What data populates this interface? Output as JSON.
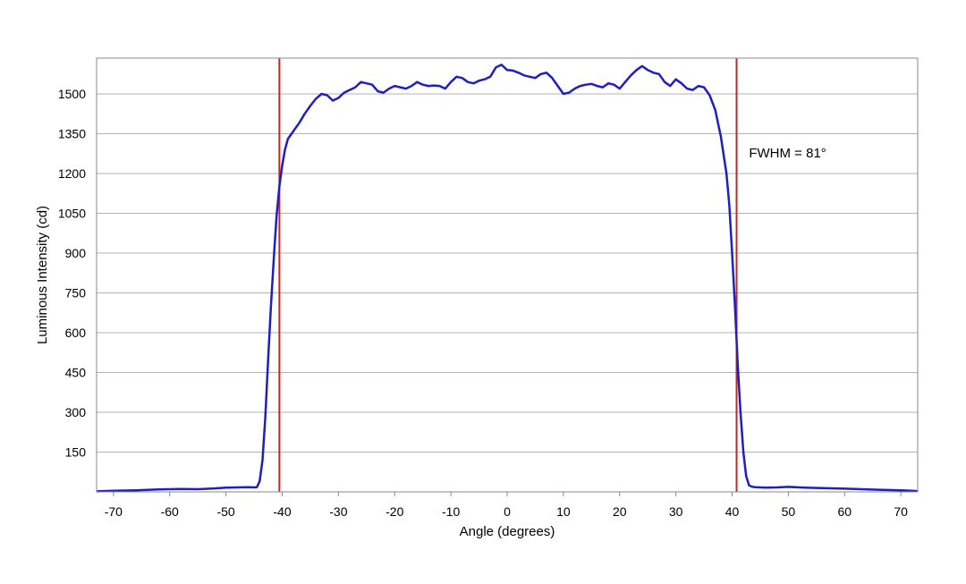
{
  "chart_data": {
    "type": "line",
    "title": "",
    "xlabel": "Angle (degrees)",
    "ylabel": "Luminous Intensity (cd)",
    "xlim": [
      -73,
      73
    ],
    "ylim": [
      0,
      1635
    ],
    "x_ticks": [
      -70,
      -60,
      -50,
      -40,
      -30,
      -20,
      -10,
      0,
      10,
      20,
      30,
      40,
      50,
      60,
      70
    ],
    "y_ticks": [
      150,
      300,
      450,
      600,
      750,
      900,
      1050,
      1200,
      1350,
      1500
    ],
    "x_tick_labels": [
      "-70",
      "-60",
      "-50",
      "-40",
      "-30",
      "-20",
      "-10",
      "0",
      "10",
      "20",
      "30",
      "40",
      "50",
      "60",
      "70"
    ],
    "y_tick_labels": [
      "150",
      "300",
      "450",
      "600",
      "750",
      "900",
      "1050",
      "1200",
      "1350",
      "1500"
    ],
    "grid": {
      "horizontal": true,
      "vertical": false
    },
    "legend": "none",
    "colors": {
      "series": "#1f1fbf",
      "fwhm_lines": "#d62020",
      "grid": "#b3b3b3",
      "frame": "#888888"
    },
    "series": [
      {
        "x": [
          -73,
          -70,
          -66,
          -62,
          -58,
          -55,
          -52,
          -50,
          -48,
          -46,
          -45,
          -44.5,
          -44,
          -43.5,
          -43,
          -42.5,
          -42,
          -41.5,
          -41,
          -40.5,
          -40,
          -39.5,
          -39,
          -38.5,
          -38,
          -37.5,
          -37,
          -36,
          -35,
          -34,
          -33,
          -32,
          -31,
          -30,
          -29,
          -28,
          -27,
          -26,
          -25,
          -24,
          -23,
          -22,
          -21,
          -20,
          -19,
          -18,
          -17,
          -16,
          -15,
          -14,
          -13,
          -12,
          -11,
          -10,
          -9,
          -8,
          -7,
          -6,
          -5,
          -4,
          -3,
          -2,
          -1,
          0,
          1,
          2,
          3,
          4,
          5,
          6,
          7,
          8,
          9,
          10,
          11,
          12,
          13,
          14,
          15,
          16,
          17,
          18,
          19,
          20,
          21,
          22,
          23,
          24,
          25,
          26,
          27,
          28,
          29,
          30,
          31,
          32,
          33,
          34,
          35,
          36,
          37,
          38,
          39,
          39.5,
          40,
          40.5,
          41,
          41.5,
          42,
          42.5,
          43,
          43.5,
          44,
          45,
          46,
          48,
          50,
          53,
          56,
          60,
          63,
          66,
          70,
          73
        ],
        "y": [
          2,
          4,
          6,
          9,
          11,
          10,
          13,
          16,
          17,
          18,
          17,
          18,
          40,
          120,
          280,
          500,
          700,
          880,
          1040,
          1150,
          1230,
          1290,
          1330,
          1345,
          1360,
          1375,
          1390,
          1425,
          1455,
          1482,
          1500,
          1495,
          1475,
          1485,
          1505,
          1515,
          1525,
          1545,
          1540,
          1535,
          1510,
          1505,
          1520,
          1530,
          1525,
          1520,
          1530,
          1545,
          1535,
          1530,
          1532,
          1530,
          1520,
          1545,
          1565,
          1560,
          1545,
          1540,
          1550,
          1555,
          1565,
          1600,
          1610,
          1590,
          1588,
          1580,
          1570,
          1565,
          1560,
          1575,
          1580,
          1560,
          1530,
          1500,
          1505,
          1520,
          1530,
          1535,
          1538,
          1530,
          1525,
          1540,
          1535,
          1520,
          1545,
          1570,
          1590,
          1605,
          1590,
          1580,
          1575,
          1545,
          1530,
          1555,
          1540,
          1520,
          1515,
          1530,
          1525,
          1495,
          1440,
          1340,
          1200,
          1080,
          900,
          700,
          480,
          300,
          150,
          60,
          25,
          20,
          18,
          17,
          16,
          17,
          19,
          16,
          14,
          12,
          10,
          8,
          6,
          3
        ]
      }
    ],
    "fwhm_x": [
      -40.5,
      40.8
    ],
    "annotations": [
      {
        "text": "FWHM = 81°",
        "x": 43,
        "y": 1260
      }
    ]
  }
}
